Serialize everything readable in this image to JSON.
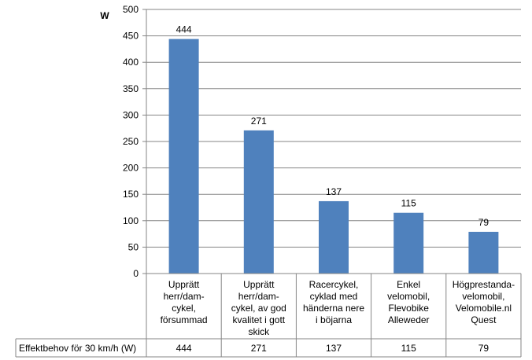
{
  "chart_data": {
    "type": "bar",
    "title": "",
    "xlabel": "",
    "ylabel": "W",
    "ylim": [
      0,
      500
    ],
    "ytick_step": 50,
    "grid": true,
    "categories": [
      [
        "Upprätt",
        "herr/dam-",
        "cykel,",
        "försummad"
      ],
      [
        "Upprätt",
        "herr/dam-",
        "cykel, av god",
        "kvalitet i gott",
        "skick"
      ],
      [
        "Racercykel,",
        "cyklad med",
        "händerna nere",
        "i böjarna"
      ],
      [
        "Enkel",
        "velomobil,",
        "Flevobike",
        "Alleweder"
      ],
      [
        "Högprestanda-",
        "velomobil,",
        "Velomobile.nl",
        "Quest"
      ]
    ],
    "series": [
      {
        "name": "Effektbehov för 30 km/h (W)",
        "values": [
          444,
          271,
          137,
          115,
          79
        ],
        "color": "#4F81BD"
      }
    ],
    "data_table": true
  }
}
